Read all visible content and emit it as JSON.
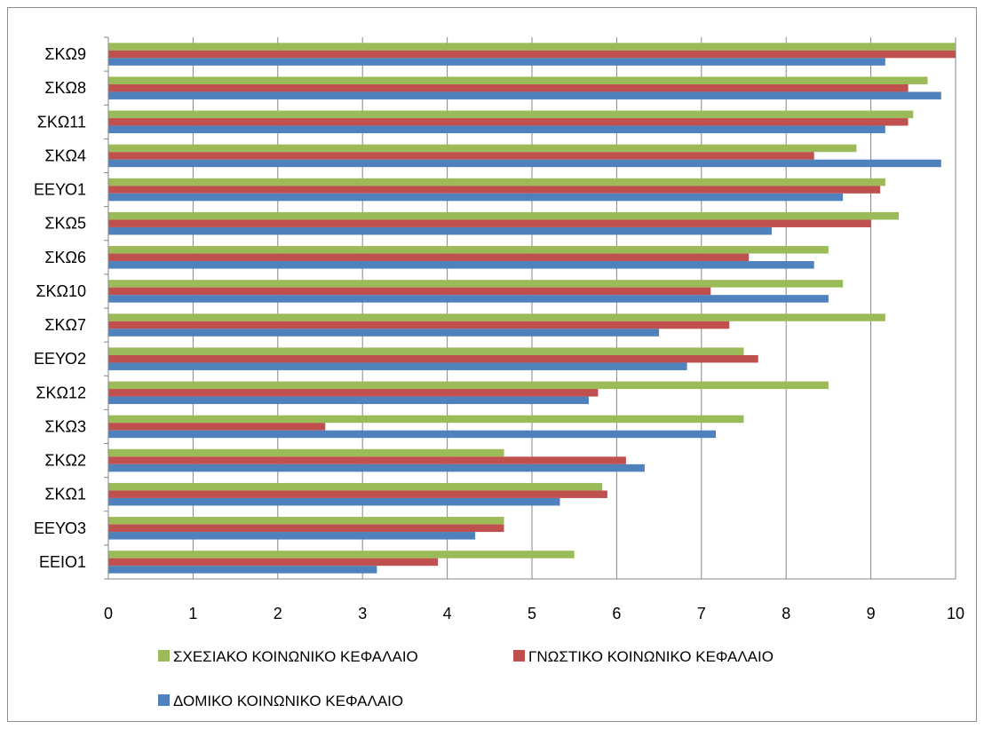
{
  "chart_data": {
    "type": "bar",
    "orientation": "horizontal",
    "categories": [
      "ΣΚΩ9",
      "ΣΚΩ8",
      "ΣΚΩ11",
      "ΣΚΩ4",
      "ΕΕΥΟ1",
      "ΣΚΩ5",
      "ΣΚΩ6",
      "ΣΚΩ10",
      "ΣΚΩ7",
      "ΕΕΥΟ2",
      "ΣΚΩ12",
      "ΣΚΩ3",
      "ΣΚΩ2",
      "ΣΚΩ1",
      "ΕΕΥΟ3",
      "ΕΕΙΟ1"
    ],
    "series": [
      {
        "name": "ΣΧΕΣΙΑΚΟ ΚΟΙΝΩΝΙΚΟ ΚΕΦΑΛΑΙΟ",
        "color": "#9bbb59",
        "values": [
          10,
          9.67,
          9.5,
          8.83,
          9.17,
          9.33,
          8.5,
          8.67,
          9.17,
          7.5,
          8.5,
          7.5,
          4.67,
          5.83,
          4.67,
          5.5
        ]
      },
      {
        "name": "ΓΝΩΣΤΙΚΟ ΚΟΙΝΩΝΙΚΟ ΚΕΦΑΛΑΙΟ",
        "color": "#c0504d",
        "values": [
          10,
          9.44,
          9.44,
          8.33,
          9.11,
          9.0,
          7.56,
          7.11,
          7.33,
          7.67,
          5.78,
          2.56,
          6.11,
          5.89,
          4.67,
          3.89
        ]
      },
      {
        "name": "ΔΟΜΙΚΟ ΚΟΙΝΩΝΙΚΟ ΚΕΦΑΛΑΙΟ",
        "color": "#4f81bd",
        "values": [
          9.17,
          9.83,
          9.17,
          9.83,
          8.67,
          7.83,
          8.33,
          8.5,
          6.5,
          6.83,
          5.67,
          7.17,
          6.33,
          5.33,
          4.33,
          3.17
        ]
      }
    ],
    "xlim": [
      0,
      10
    ],
    "x_ticks": [
      "0",
      "1",
      "2",
      "3",
      "4",
      "5",
      "6",
      "7",
      "8",
      "9",
      "10"
    ],
    "grid": "vertical",
    "legend_position": "bottom",
    "title": "",
    "xlabel": "",
    "ylabel": ""
  }
}
